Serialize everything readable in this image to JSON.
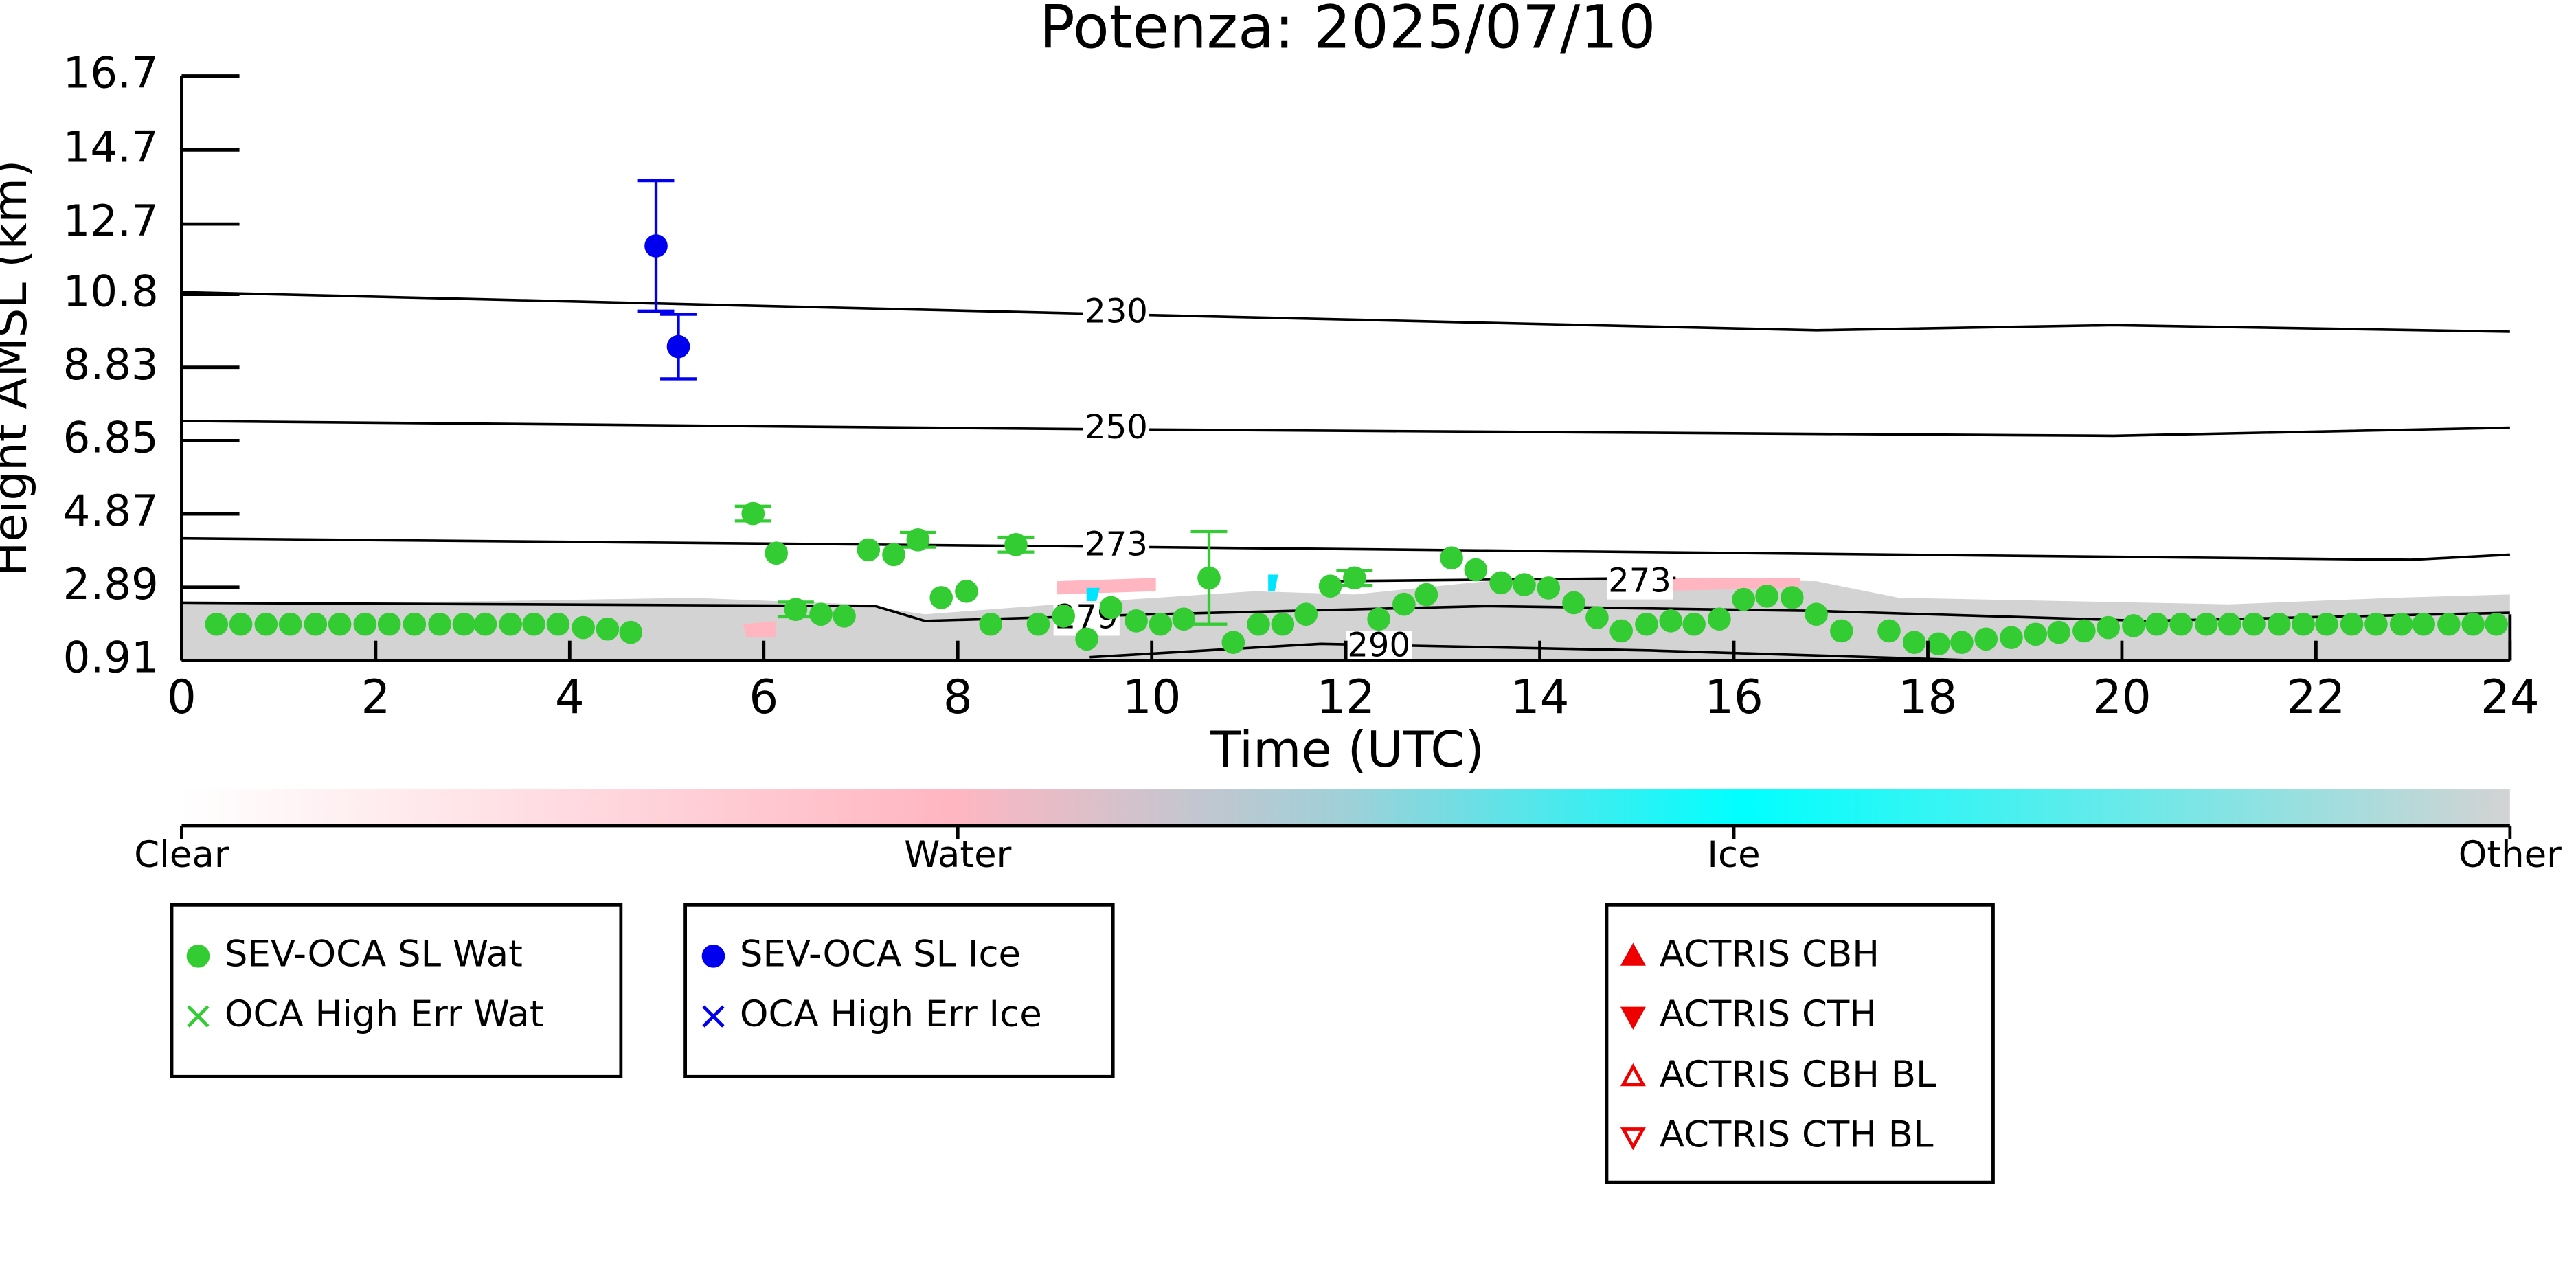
{
  "chart_data": {
    "type": "scatter",
    "title": "Potenza: 2025/07/10",
    "x_label": "Time (UTC)",
    "y_label": "Height AMSL (km)",
    "xlim": [
      0,
      24
    ],
    "xticks": [
      0,
      2,
      4,
      6,
      8,
      10,
      12,
      14,
      16,
      18,
      20,
      22,
      24
    ],
    "ylim": [
      0.91,
      16.7
    ],
    "yticks": [
      0.91,
      2.89,
      4.87,
      6.85,
      8.83,
      10.8,
      12.7,
      14.7,
      16.7
    ],
    "series": [
      {
        "name": "SEV-OCA SL Wat",
        "color": "#33cc33",
        "marker": "circle",
        "x": [
          0.36,
          0.61,
          0.87,
          1.12,
          1.38,
          1.63,
          1.89,
          2.14,
          2.4,
          2.66,
          2.91,
          3.13,
          3.39,
          3.63,
          3.88,
          4.14,
          4.39,
          4.63,
          5.89,
          6.13,
          6.33,
          6.59,
          6.83,
          7.08,
          7.34,
          7.59,
          7.83,
          8.09,
          8.34,
          8.6,
          8.83,
          9.09,
          9.33,
          9.58,
          9.84,
          10.09,
          10.33,
          10.59,
          10.84,
          11.1,
          11.35,
          11.59,
          11.84,
          12.09,
          12.34,
          12.6,
          12.83,
          13.09,
          13.34,
          13.6,
          13.84,
          14.09,
          14.35,
          14.59,
          14.84,
          15.1,
          15.35,
          15.59,
          15.85,
          16.1,
          16.34,
          16.6,
          16.85,
          17.11,
          17.6,
          17.86,
          18.11,
          18.35,
          18.6,
          18.86,
          19.11,
          19.35,
          19.61,
          19.86,
          20.12,
          20.36,
          20.61,
          20.87,
          21.11,
          21.36,
          21.62,
          21.87,
          22.11,
          22.37,
          22.62,
          22.88,
          23.11,
          23.37,
          23.62,
          23.86
        ],
        "values": [
          1.89,
          1.89,
          1.89,
          1.89,
          1.89,
          1.89,
          1.89,
          1.89,
          1.89,
          1.89,
          1.89,
          1.89,
          1.89,
          1.89,
          1.89,
          1.8,
          1.76,
          1.67,
          4.88,
          3.81,
          2.29,
          2.16,
          2.11,
          3.9,
          3.77,
          4.17,
          2.61,
          2.78,
          1.89,
          4.04,
          1.89,
          2.11,
          1.49,
          2.34,
          1.98,
          1.89,
          2.03,
          3.14,
          1.4,
          1.89,
          1.89,
          2.16,
          2.92,
          3.14,
          2.03,
          2.43,
          2.69,
          3.68,
          3.36,
          3.01,
          2.96,
          2.87,
          2.47,
          2.07,
          1.71,
          1.89,
          1.98,
          1.89,
          2.03,
          2.56,
          2.65,
          2.61,
          2.16,
          1.71,
          1.71,
          1.4,
          1.36,
          1.4,
          1.49,
          1.53,
          1.62,
          1.67,
          1.71,
          1.8,
          1.85,
          1.89,
          1.89,
          1.89,
          1.89,
          1.89,
          1.89,
          1.89,
          1.89,
          1.89,
          1.89,
          1.89,
          1.89,
          1.89,
          1.89,
          1.89
        ],
        "errors": [
          null,
          null,
          null,
          null,
          null,
          null,
          null,
          null,
          null,
          null,
          null,
          null,
          null,
          null,
          null,
          null,
          null,
          null,
          0.2,
          null,
          0.2,
          null,
          null,
          null,
          null,
          0.2,
          null,
          null,
          null,
          0.2,
          null,
          null,
          null,
          null,
          null,
          null,
          null,
          1.25,
          null,
          null,
          null,
          null,
          null,
          0.2,
          null,
          null,
          null,
          null,
          null,
          null,
          null,
          null,
          null,
          null,
          null,
          null,
          null,
          null,
          null,
          null,
          null,
          null,
          null,
          null,
          null,
          null,
          null,
          null,
          null,
          null,
          null,
          null,
          null,
          null,
          null,
          null,
          null,
          null,
          null,
          null,
          null,
          null,
          null,
          null,
          null,
          null,
          null,
          null,
          null,
          null
        ]
      },
      {
        "name": "OCA High Err Wat",
        "color": "#33cc33",
        "marker": "x",
        "x": [],
        "values": []
      },
      {
        "name": "SEV-OCA SL Ice",
        "color": "#0000ee",
        "marker": "circle",
        "x": [
          4.89,
          5.12
        ],
        "values": [
          12.11,
          9.39
        ],
        "errors": [
          1.76,
          0.87
        ]
      },
      {
        "name": "OCA High Err Ice",
        "color": "#0000ee",
        "marker": "x",
        "x": [],
        "values": []
      },
      {
        "name": "ACTRIS CBH",
        "color": "#ee0000",
        "marker": "triangle-up",
        "x": [],
        "values": []
      },
      {
        "name": "ACTRIS CTH",
        "color": "#ee0000",
        "marker": "triangle-down",
        "x": [],
        "values": []
      },
      {
        "name": "ACTRIS CBH BL",
        "color": "#ee0000",
        "marker": "triangle-up-open",
        "x": [],
        "values": []
      },
      {
        "name": "ACTRIS CTH BL",
        "color": "#ee0000",
        "marker": "triangle-down-open",
        "x": [],
        "values": []
      }
    ],
    "contours": [
      {
        "label": "230",
        "x": [
          0,
          9.33,
          16.85,
          19.91,
          24
        ],
        "values": [
          10.86,
          10.28,
          9.83,
          9.97,
          9.79
        ]
      },
      {
        "label": "250",
        "x": [
          0,
          9.33,
          19.91,
          24
        ],
        "values": [
          7.38,
          7.16,
          6.98,
          7.2
        ]
      },
      {
        "label": "273",
        "x": [
          0,
          9.33,
          22.98,
          24
        ],
        "values": [
          4.21,
          3.99,
          3.63,
          3.77
        ]
      },
      {
        "label": "273",
        "x": [
          11.74,
          15.4
        ],
        "values": [
          3.05,
          3.14
        ]
      },
      {
        "label": "279",
        "x": [
          0,
          7.15,
          7.66,
          10.04,
          13.45,
          16.85,
          20.26,
          24
        ],
        "values": [
          2.47,
          2.38,
          1.98,
          2.16,
          2.38,
          2.25,
          1.98,
          2.2
        ]
      },
      {
        "label": "290",
        "x": [
          9.36,
          11.74,
          15.15,
          18.55
        ],
        "values": [
          1.0,
          1.36,
          1.18,
          0.91
        ]
      }
    ],
    "colorbar": {
      "labels": [
        "Clear",
        "Water",
        "Ice",
        "Other"
      ]
    }
  }
}
